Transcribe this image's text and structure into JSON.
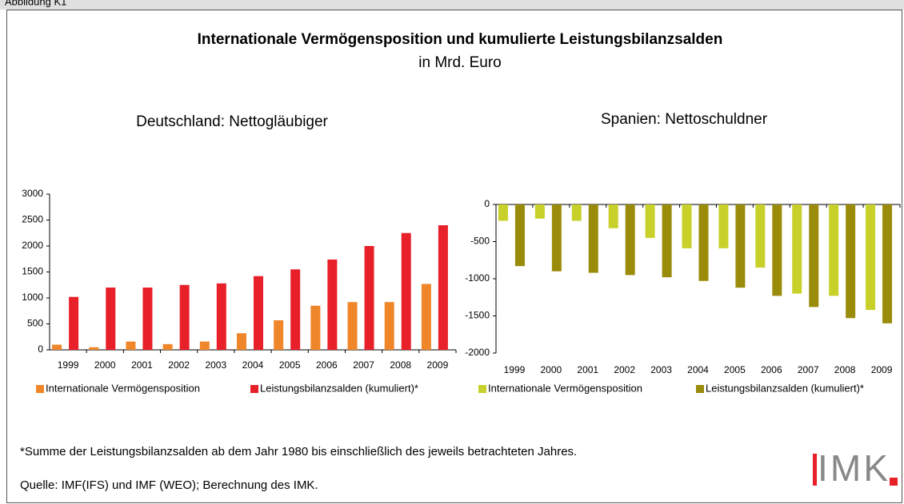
{
  "figure_label": "Abbildung K1",
  "title": "Internationale Vermögensposition und kumulierte Leistungsbilanzsalden",
  "subtitle": "in Mrd. Euro",
  "footnote": "*Summe der Leistungsbilanzsalden ab dem Jahr 1980 bis einschließlich des jeweils betrachteten Jahres.",
  "source": "Quelle: IMF(IFS) und IMF (WEO); Berechnung des IMK.",
  "logo": "IMK",
  "chart_data": [
    {
      "type": "bar",
      "title": "Deutschland: Nettogläubiger",
      "categories": [
        "1999",
        "2000",
        "2001",
        "2002",
        "2003",
        "2004",
        "2005",
        "2006",
        "2007",
        "2008",
        "2009"
      ],
      "series": [
        {
          "name": "Internationale Vermögensposition",
          "color": "#f0862a",
          "values": [
            100,
            50,
            160,
            110,
            160,
            320,
            570,
            850,
            920,
            920,
            1270
          ]
        },
        {
          "name": "Leistungsbilanzsalden (kumuliert)*",
          "color": "#e8202a",
          "values": [
            1020,
            1200,
            1200,
            1250,
            1280,
            1420,
            1550,
            1740,
            2000,
            2250,
            2400
          ]
        }
      ],
      "ylim": [
        0,
        3000
      ],
      "yticks": [
        0,
        500,
        1000,
        1500,
        2000,
        2500,
        3000
      ]
    },
    {
      "type": "bar",
      "title": "Spanien: Nettoschuldner",
      "categories": [
        "1999",
        "2000",
        "2001",
        "2002",
        "2003",
        "2004",
        "2005",
        "2006",
        "2007",
        "2008",
        "2009"
      ],
      "series": [
        {
          "name": "Internationale Vermögensposition",
          "color": "#c8d12a",
          "values": [
            -220,
            -190,
            -220,
            -320,
            -450,
            -590,
            -590,
            -850,
            -1200,
            -1230,
            -1420
          ]
        },
        {
          "name": "Leistungsbilanzsalden (kumuliert)*",
          "color": "#9a8c0a",
          "values": [
            -830,
            -900,
            -920,
            -950,
            -980,
            -1030,
            -1120,
            -1230,
            -1380,
            -1530,
            -1600
          ]
        }
      ],
      "ylim": [
        -2000,
        0
      ],
      "yticks": [
        -2000,
        -1500,
        -1000,
        -500,
        0
      ]
    }
  ]
}
